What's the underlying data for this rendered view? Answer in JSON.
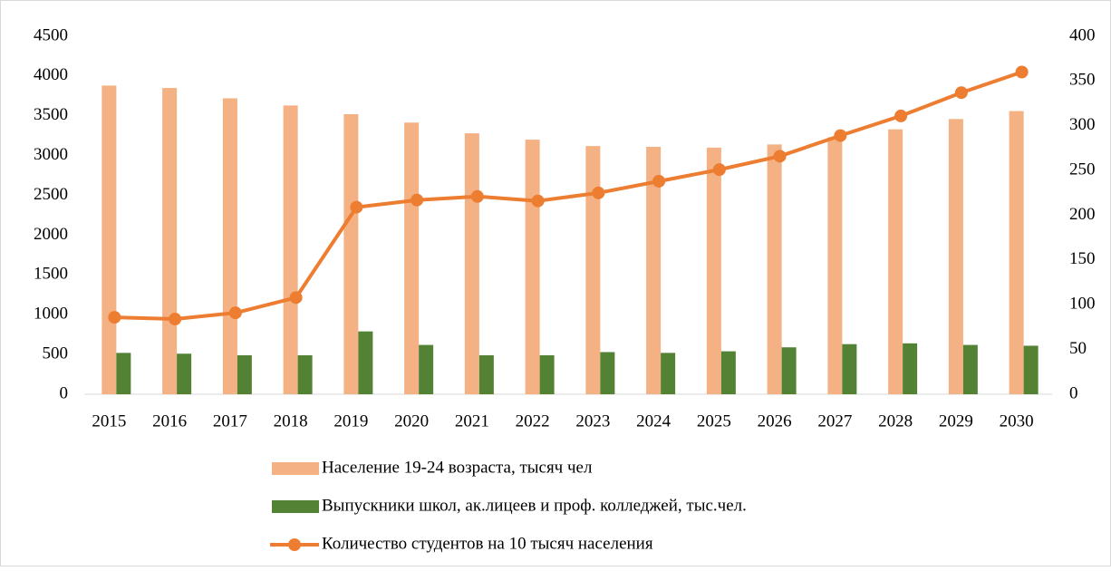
{
  "chart_data": {
    "type": "bar",
    "categories": [
      "2015",
      "2016",
      "2017",
      "2018",
      "2019",
      "2020",
      "2021",
      "2022",
      "2023",
      "2024",
      "2025",
      "2026",
      "2027",
      "2028",
      "2029",
      "2030"
    ],
    "series": [
      {
        "name": "Население 19-24 возраста,  тысяч чел",
        "type": "bar",
        "color": "#f4b183",
        "values": [
          3880,
          3850,
          3720,
          3630,
          3520,
          3415,
          3280,
          3200,
          3120,
          3110,
          3100,
          3140,
          3230,
          3330,
          3460,
          3560
        ]
      },
      {
        "name": "Выпускники школ, ак.лицеев и проф. колледжей, тыс.чел.",
        "type": "bar",
        "color": "#548235",
        "values": [
          520,
          510,
          490,
          490,
          790,
          620,
          490,
          490,
          530,
          520,
          540,
          590,
          630,
          640,
          620,
          610
        ]
      },
      {
        "name": "Количество студентов на 10 тысяч населения",
        "type": "line",
        "axis": "y2",
        "color": "#ed7d31",
        "values": [
          86,
          84,
          91,
          108,
          209,
          217,
          221,
          216,
          225,
          238,
          251,
          266,
          289,
          311,
          337,
          360
        ]
      }
    ],
    "ylim": [
      0,
      4500
    ],
    "yticks": [
      0,
      500,
      1000,
      1500,
      2000,
      2500,
      3000,
      3500,
      4000,
      4500
    ],
    "y2lim": [
      0,
      400
    ],
    "y2ticks": [
      0,
      50,
      100,
      150,
      200,
      250,
      300,
      350,
      400
    ],
    "legend": "bottom"
  }
}
